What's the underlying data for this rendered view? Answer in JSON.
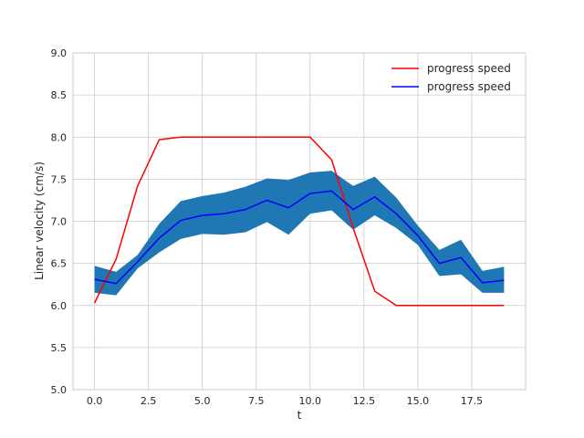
{
  "chart_data": {
    "type": "line",
    "title": "",
    "xlabel": "t",
    "ylabel": "Linear velocity (cm/s)",
    "xlim": [
      -1,
      20
    ],
    "ylim": [
      5.0,
      9.0
    ],
    "xticks": [
      0.0,
      2.5,
      5.0,
      7.5,
      10.0,
      12.5,
      15.0,
      17.5
    ],
    "xtick_labels": [
      "0.0",
      "2.5",
      "5.0",
      "7.5",
      "10.0",
      "12.5",
      "15.0",
      "17.5"
    ],
    "yticks": [
      5.0,
      5.5,
      6.0,
      6.5,
      7.0,
      7.5,
      8.0,
      8.5,
      9.0
    ],
    "ytick_labels": [
      "5.0",
      "5.5",
      "6.0",
      "6.5",
      "7.0",
      "7.5",
      "8.0",
      "8.5",
      "9.0"
    ],
    "grid": true,
    "legend_position": "top-right",
    "x": [
      0,
      1,
      2,
      3,
      4,
      5,
      6,
      7,
      8,
      9,
      10,
      11,
      12,
      13,
      14,
      15,
      16,
      17,
      18,
      19
    ],
    "series": [
      {
        "name": "progress speed",
        "color": "#ff0000",
        "values": [
          6.03,
          6.55,
          7.42,
          7.97,
          8.0,
          8.0,
          8.0,
          8.0,
          8.0,
          8.0,
          8.0,
          7.73,
          6.92,
          6.17,
          6.0,
          6.0,
          6.0,
          6.0,
          6.0,
          6.0
        ]
      },
      {
        "name": "progress speed",
        "color": "#0000ff",
        "values": [
          6.31,
          6.26,
          6.52,
          6.8,
          7.01,
          7.07,
          7.09,
          7.14,
          7.25,
          7.16,
          7.33,
          7.36,
          7.14,
          7.29,
          7.09,
          6.83,
          6.5,
          6.57,
          6.27,
          6.3
        ],
        "band_lower": [
          6.15,
          6.12,
          6.44,
          6.63,
          6.79,
          6.85,
          6.84,
          6.87,
          6.99,
          6.84,
          7.09,
          7.13,
          6.9,
          7.07,
          6.92,
          6.72,
          6.35,
          6.37,
          6.15,
          6.15
        ],
        "band_upper": [
          6.47,
          6.4,
          6.6,
          6.97,
          7.24,
          7.3,
          7.34,
          7.41,
          7.51,
          7.49,
          7.58,
          7.6,
          7.42,
          7.53,
          7.28,
          6.95,
          6.66,
          6.78,
          6.41,
          6.46
        ],
        "band_color": "#1f77b4"
      }
    ]
  }
}
